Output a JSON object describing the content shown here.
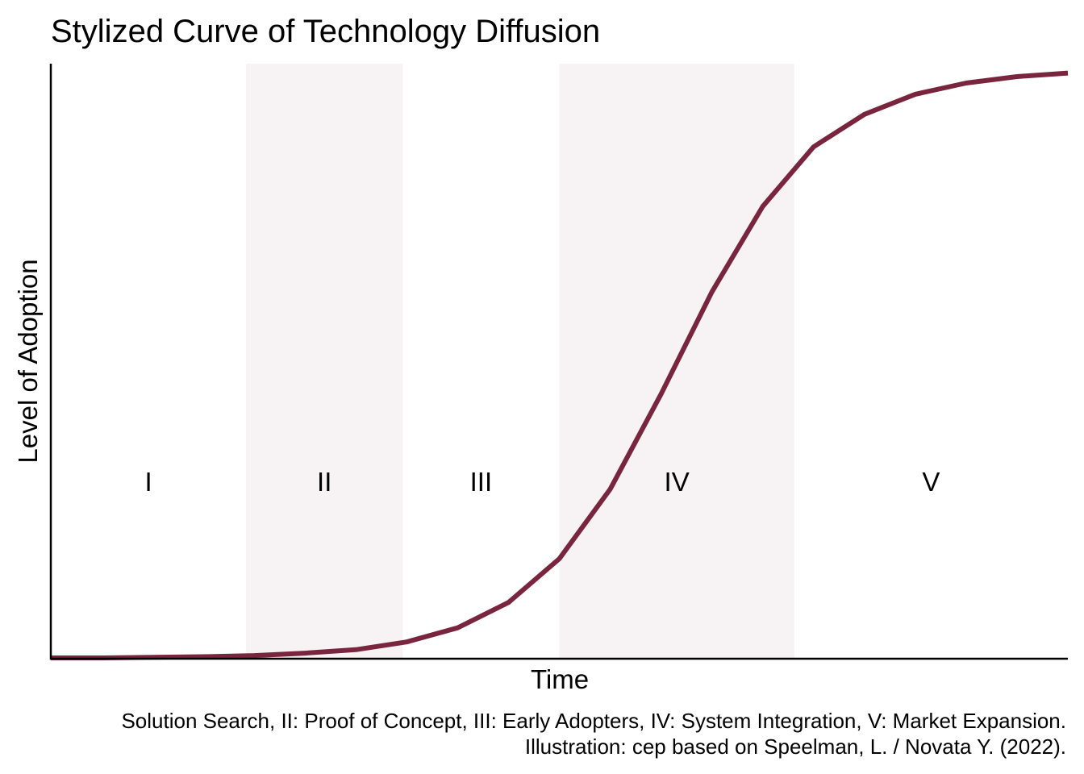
{
  "chart_data": {
    "type": "line",
    "title": "Stylized Curve of Technology Diffusion",
    "xlabel": "Time",
    "ylabel": "Level of Adoption",
    "xlim": [
      0,
      1
    ],
    "ylim": [
      0,
      1
    ],
    "grid": false,
    "legend": "none",
    "colors": {
      "curve": "#7a2540",
      "band": "#f7f2f4",
      "axis": "#000000"
    },
    "phases": [
      {
        "label": "I",
        "start": 0.0,
        "end": 0.192,
        "shaded": false
      },
      {
        "label": "II",
        "start": 0.192,
        "end": 0.346,
        "shaded": true
      },
      {
        "label": "III",
        "start": 0.346,
        "end": 0.5,
        "shaded": false
      },
      {
        "label": "IV",
        "start": 0.5,
        "end": 0.731,
        "shaded": true
      },
      {
        "label": "V",
        "start": 0.731,
        "end": 1.0,
        "shaded": false
      }
    ],
    "series": [
      {
        "x": [
          0.0,
          0.05,
          0.1,
          0.15,
          0.2,
          0.25,
          0.3,
          0.35,
          0.4,
          0.45,
          0.5,
          0.55,
          0.6,
          0.65,
          0.7,
          0.75,
          0.8,
          0.85,
          0.9,
          0.95,
          1.0
        ],
        "values": [
          0.0,
          0.0,
          0.001,
          0.002,
          0.004,
          0.008,
          0.014,
          0.027,
          0.051,
          0.094,
          0.168,
          0.286,
          0.447,
          0.62,
          0.765,
          0.866,
          0.921,
          0.955,
          0.974,
          0.985,
          0.991
        ]
      }
    ]
  },
  "caption": {
    "line1": "Solution Search, II: Proof of Concept, III: Early Adopters, IV: System Integration, V: Market Expansion.",
    "line2": "Illustration: cep based on Speelman, L. / Novata Y. (2022)."
  }
}
